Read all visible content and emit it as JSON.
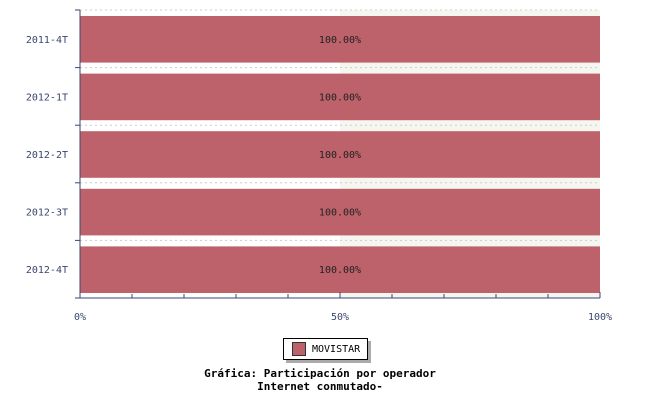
{
  "chart_data": {
    "type": "bar",
    "orientation": "horizontal",
    "stacked_percent": true,
    "title": "Gráfica: Participación por operador",
    "subtitle": "Internet conmutado-",
    "categories": [
      "2011-4T",
      "2012-1T",
      "2012-2T",
      "2012-3T",
      "2012-4T"
    ],
    "series": [
      {
        "name": "MOVISTAR",
        "values": [
          100,
          100,
          100,
          100,
          100
        ],
        "labels": [
          "100.00%",
          "100.00%",
          "100.00%",
          "100.00%",
          "100.00%"
        ],
        "color": "#bd626a"
      }
    ],
    "xlim": [
      0,
      100
    ],
    "xticks": [
      "0%",
      "50%",
      "100%"
    ],
    "grid": true,
    "legend": "bottom-center"
  }
}
